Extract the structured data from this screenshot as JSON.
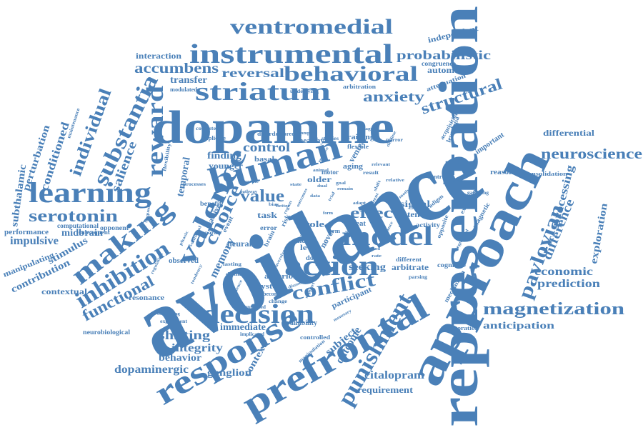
{
  "color": "#4a80b8",
  "words": [
    "avoidance",
    "representation",
    "dopamine",
    "approach",
    "prefrontal",
    "response",
    "human",
    "instrumental",
    "ventromedial",
    "striatum",
    "behavioral",
    "learning",
    "decision",
    "action",
    "model",
    "making",
    "valence",
    "reward",
    "substantia",
    "inhibition",
    "serotonin",
    "individual",
    "magnetization",
    "punishment",
    "pavlovian",
    "neuroscience",
    "conflict",
    "choice",
    "anxiety",
    "structural",
    "accumbens",
    "reversal",
    "probabilistic",
    "functional",
    "effect",
    "value",
    "control",
    "shifting",
    "salience",
    "memory",
    "integrity",
    "dopaminergic",
    "citalopram",
    "ganglion",
    "requirement",
    "behavior",
    "immediate",
    "outcome",
    "subject",
    "context",
    "economic",
    "prediction",
    "anticipation",
    "exploration",
    "difference",
    "processing",
    "differential",
    "midbrain",
    "impulsive",
    "stimulus",
    "contribution",
    "contextual",
    "conditioned",
    "perturbation",
    "subthalamic",
    "manipulating",
    "performance",
    "computational",
    "interaction",
    "transfer",
    "automatic",
    "independent",
    "signal",
    "potential",
    "arbitrate",
    "seeking",
    "anterior",
    "system",
    "participant",
    "neurobiological",
    "resonance",
    "older",
    "finding",
    "younger",
    "temporal",
    "task",
    "role",
    "level",
    "novel",
    "neural",
    "threat",
    "training",
    "ventral",
    "aging",
    "healthy",
    "basal",
    "motor",
    "attenuation",
    "congruence",
    "modulated",
    "arbitration",
    "underlying",
    "consolidation",
    "reasoning",
    "important",
    "cognitive",
    "mechanism",
    "invigoration",
    "availability",
    "controlled",
    "observed",
    "opponent",
    "subsequent",
    "benefit",
    "passive",
    "flexibility",
    "maintenance",
    "paradigm",
    "activity",
    "underlie",
    "magnetic",
    "executive",
    "gambling",
    "inaction",
    "contrast",
    "levodopa",
    "acquisition",
    "implicate",
    "consistent",
    "disorder",
    "predict",
    "flexible",
    "mirror",
    "result",
    "event",
    "error",
    "brain",
    "risk",
    "adult",
    "dopa",
    "more",
    "self",
    "term",
    "become",
    "change",
    "lasting",
    "distinct",
    "separate",
    "volitional",
    "different",
    "opposite",
    "motivation",
    "implicated",
    "experiment",
    "controlling",
    "manipulation",
    "monetary",
    "parsing",
    "studies",
    "tegmental",
    "reactive",
    "goal",
    "data",
    "animal",
    "complex",
    "region",
    "form",
    "remain",
    "better",
    "trial",
    "influence",
    "tendency",
    "support",
    "persistent",
    "decline",
    "method",
    "preference",
    "shift",
    "adapt",
    "aversive",
    "bias",
    "state",
    "engage",
    "people",
    "frequency",
    "encoding",
    "unrelated",
    "processes",
    "regulation",
    "rate",
    "dissociation",
    "pathway",
    "relative",
    "relevant",
    "dual",
    "outcomes",
    "phasic"
  ]
}
